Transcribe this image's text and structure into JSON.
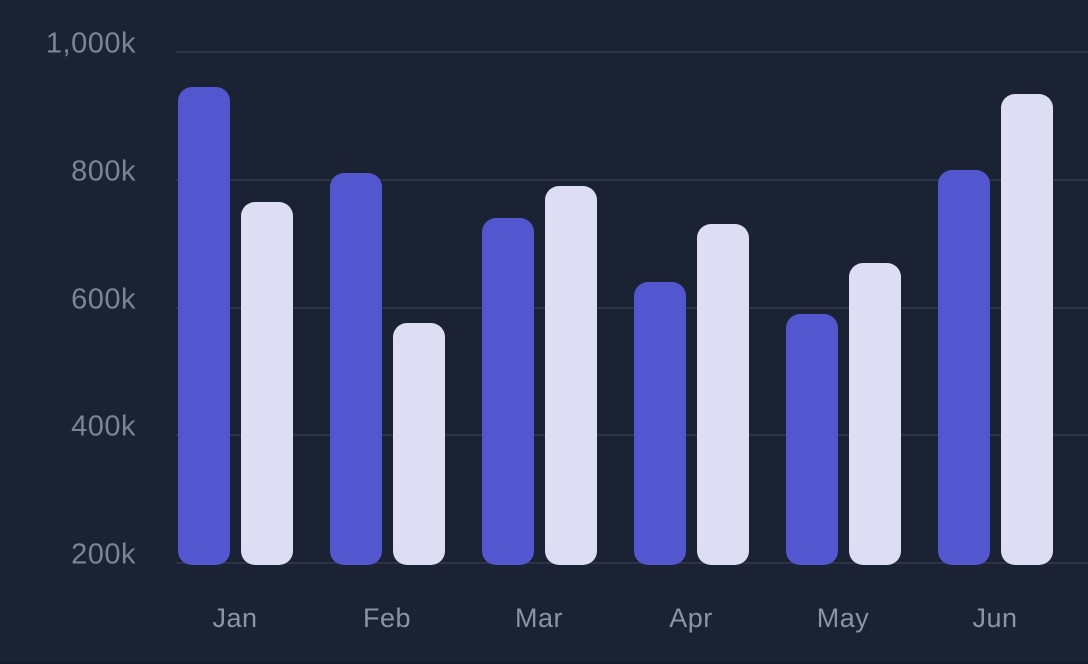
{
  "chart_data": {
    "type": "bar",
    "title": "",
    "xlabel": "",
    "ylabel": "",
    "categories": [
      "Jan",
      "Feb",
      "Mar",
      "Apr",
      "May",
      "Jun"
    ],
    "series": [
      {
        "name": "indigo-series",
        "color": "#5256CF",
        "values": [
          945,
          810,
          740,
          640,
          590,
          815
        ]
      },
      {
        "name": "lavender-series",
        "color": "#DDDEF4",
        "values": [
          765,
          575,
          790,
          730,
          670,
          935
        ]
      }
    ],
    "ylim": [
      200,
      1000
    ],
    "yticks": [
      {
        "value": 200,
        "label": "200k"
      },
      {
        "value": 400,
        "label": "400k"
      },
      {
        "value": 600,
        "label": "600k"
      },
      {
        "value": 800,
        "label": "800k"
      },
      {
        "value": 1000,
        "label": "1,000k"
      }
    ],
    "unit_suffix": "k",
    "grid": true,
    "legend": false
  },
  "colors": {
    "background": "#1B2233",
    "gridline": "#2C3445",
    "tick_label": "#7C8495",
    "month_label": "#8B93A4",
    "bottom_edge": "#151C2A"
  }
}
